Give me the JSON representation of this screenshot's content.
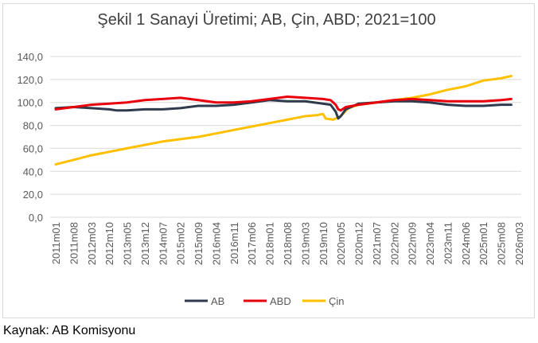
{
  "chart_data": {
    "type": "line",
    "title": "Şekil 1 Sanayi Üretimi; AB, Çin, ABD; 2021=100",
    "xlabel": "",
    "ylabel": "",
    "ylim": [
      0,
      140
    ],
    "yticks": [
      "0,0",
      "20,0",
      "40,0",
      "60,0",
      "80,0",
      "100,0",
      "120,0",
      "140,0"
    ],
    "x_tick_labels": [
      "2011m01",
      "2011m08",
      "2012m03",
      "2012m10",
      "2013m05",
      "2013m12",
      "2014m07",
      "2015m02",
      "2015m09",
      "2016m04",
      "2016m11",
      "2017m06",
      "2018m01",
      "2018m08",
      "2019m03",
      "2019m10",
      "2020m05",
      "2020m12",
      "2021m07",
      "2022m02",
      "2022m09",
      "2023m04",
      "2023m11",
      "2024m06",
      "2025m01",
      "2025m08",
      "2026m03"
    ],
    "grid": "horizontal",
    "legend_position": "bottom",
    "series": [
      {
        "name": "AB",
        "color": "#2f3b4c",
        "points": [
          [
            "2011m01",
            95
          ],
          [
            "2011m08",
            96
          ],
          [
            "2012m03",
            95
          ],
          [
            "2012m10",
            94
          ],
          [
            "2013m01",
            93
          ],
          [
            "2013m05",
            93
          ],
          [
            "2013m12",
            94
          ],
          [
            "2014m07",
            94
          ],
          [
            "2015m02",
            95
          ],
          [
            "2015m09",
            97
          ],
          [
            "2016m04",
            97
          ],
          [
            "2016m11",
            98
          ],
          [
            "2017m06",
            100
          ],
          [
            "2018m01",
            102
          ],
          [
            "2018m08",
            101
          ],
          [
            "2019m03",
            101
          ],
          [
            "2019m10",
            99
          ],
          [
            "2020m01",
            98
          ],
          [
            "2020m03",
            92
          ],
          [
            "2020m04",
            86
          ],
          [
            "2020m05",
            88
          ],
          [
            "2020m07",
            94
          ],
          [
            "2020m12",
            99
          ],
          [
            "2021m07",
            100
          ],
          [
            "2022m02",
            101
          ],
          [
            "2022m09",
            101
          ],
          [
            "2023m04",
            100
          ],
          [
            "2023m11",
            98
          ],
          [
            "2024m06",
            97
          ],
          [
            "2025m01",
            97
          ],
          [
            "2025m08",
            98
          ],
          [
            "2025m12",
            98
          ]
        ]
      },
      {
        "name": "ABD",
        "color": "#e8000b",
        "points": [
          [
            "2011m01",
            94
          ],
          [
            "2011m08",
            96
          ],
          [
            "2012m03",
            98
          ],
          [
            "2012m10",
            99
          ],
          [
            "2013m05",
            100
          ],
          [
            "2013m12",
            102
          ],
          [
            "2014m07",
            103
          ],
          [
            "2015m02",
            104
          ],
          [
            "2015m09",
            102
          ],
          [
            "2016m04",
            100
          ],
          [
            "2016m11",
            100
          ],
          [
            "2017m06",
            101
          ],
          [
            "2018m01",
            103
          ],
          [
            "2018m08",
            105
          ],
          [
            "2019m03",
            104
          ],
          [
            "2019m10",
            103
          ],
          [
            "2020m01",
            102
          ],
          [
            "2020m03",
            98
          ],
          [
            "2020m04",
            94
          ],
          [
            "2020m05",
            93
          ],
          [
            "2020m07",
            96
          ],
          [
            "2020m12",
            98
          ],
          [
            "2021m07",
            100
          ],
          [
            "2022m02",
            102
          ],
          [
            "2022m09",
            103
          ],
          [
            "2023m04",
            102
          ],
          [
            "2023m11",
            101
          ],
          [
            "2024m06",
            101
          ],
          [
            "2025m01",
            101
          ],
          [
            "2025m08",
            102
          ],
          [
            "2025m12",
            103
          ]
        ]
      },
      {
        "name": "Çin",
        "color": "#ffc000",
        "points": [
          [
            "2011m01",
            46
          ],
          [
            "2011m08",
            50
          ],
          [
            "2012m03",
            54
          ],
          [
            "2012m10",
            57
          ],
          [
            "2013m05",
            60
          ],
          [
            "2013m12",
            63
          ],
          [
            "2014m07",
            66
          ],
          [
            "2015m02",
            68
          ],
          [
            "2015m09",
            70
          ],
          [
            "2016m04",
            73
          ],
          [
            "2016m11",
            76
          ],
          [
            "2017m06",
            79
          ],
          [
            "2018m01",
            82
          ],
          [
            "2018m08",
            85
          ],
          [
            "2019m03",
            88
          ],
          [
            "2019m08",
            89
          ],
          [
            "2019m10",
            90
          ],
          [
            "2019m11",
            86
          ],
          [
            "2020m02",
            85
          ],
          [
            "2020m05",
            88
          ],
          [
            "2020m08",
            95
          ],
          [
            "2020m12",
            98
          ],
          [
            "2021m07",
            100
          ],
          [
            "2022m02",
            102
          ],
          [
            "2022m09",
            104
          ],
          [
            "2023m04",
            107
          ],
          [
            "2023m11",
            111
          ],
          [
            "2024m06",
            114
          ],
          [
            "2025m01",
            119
          ],
          [
            "2025m08",
            121
          ],
          [
            "2025m12",
            123
          ]
        ]
      }
    ]
  },
  "source_note": "Kaynak: AB Komisyonu"
}
